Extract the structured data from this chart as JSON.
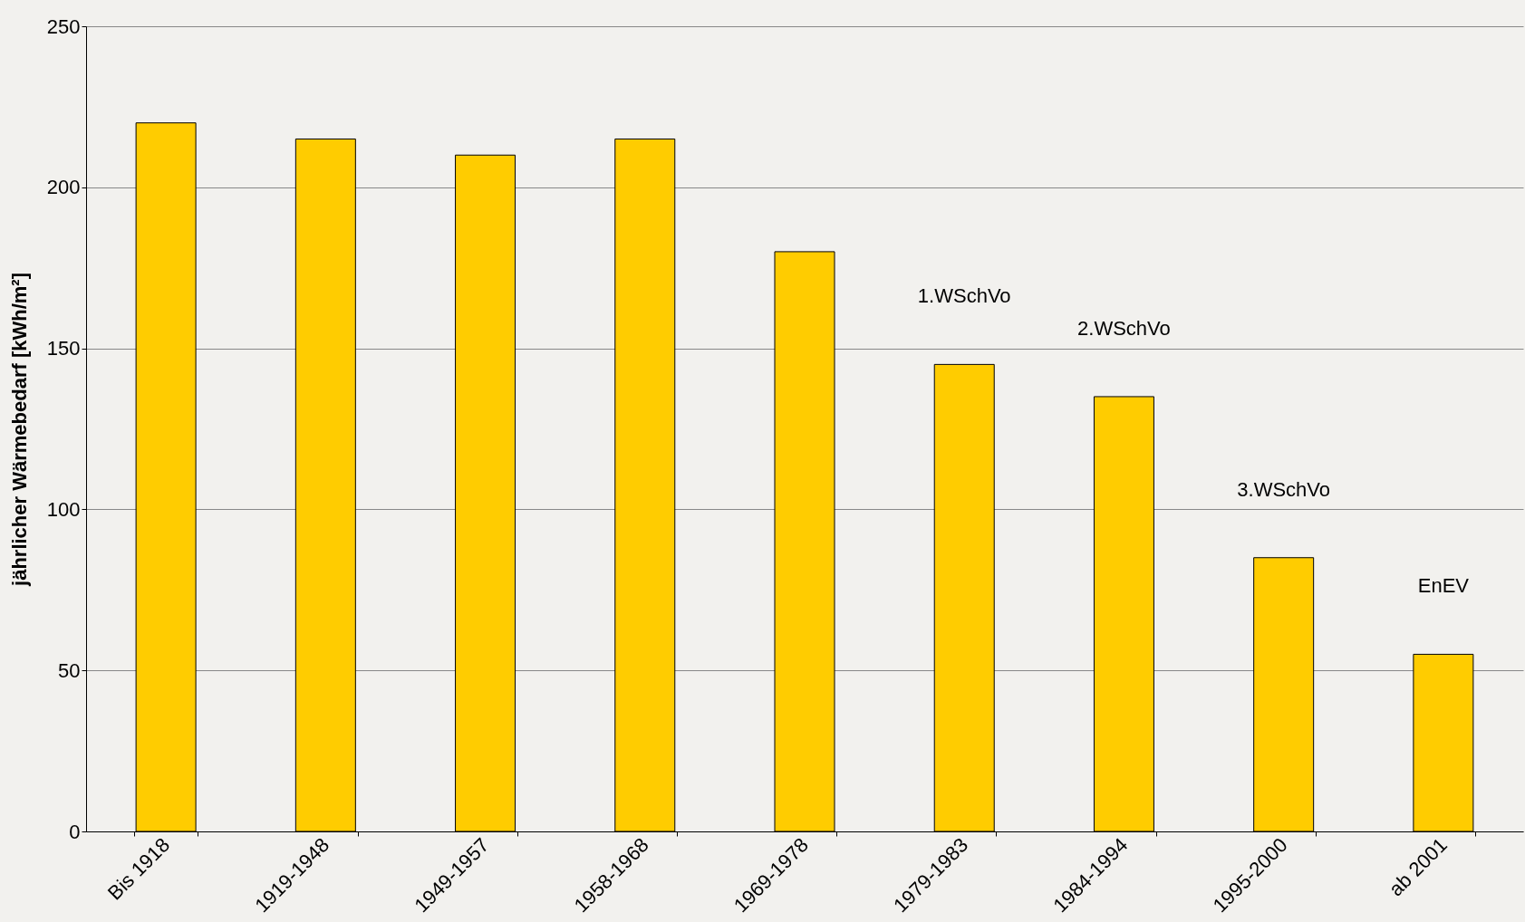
{
  "chart_data": {
    "type": "bar",
    "ylabel": "jährlicher Wärmebedarf [kWh/m²]",
    "categories": [
      "Bis 1918",
      "1919-1948",
      "1949-1957",
      "1958-1968",
      "1969-1978",
      "1979-1983",
      "1984-1994",
      "1995-2000",
      "ab 2001"
    ],
    "values": [
      220,
      215,
      210,
      215,
      180,
      145,
      135,
      85,
      55
    ],
    "color": "#ffcc00",
    "ylim": [
      0,
      250
    ],
    "yticks": [
      0,
      50,
      100,
      150,
      200,
      250
    ],
    "grid": "y",
    "annotations": [
      "1.WSchVo",
      "2.WSchVo",
      "3.WSchVo",
      "EnEV"
    ]
  }
}
